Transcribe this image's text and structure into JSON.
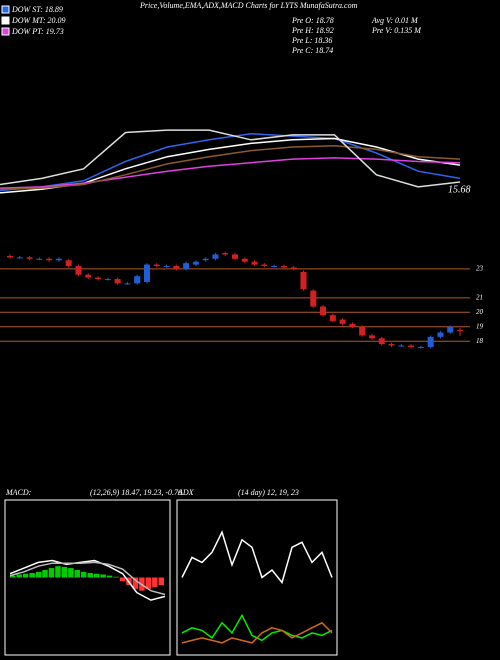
{
  "header": {
    "title": "Price,Volume,EMA,ADX,MACD Charts for LYTS MunafaSutra.com",
    "stats": [
      "Pre  O: 18.78",
      "Pre  H: 18.92",
      "Pre  L: 18.36",
      "Pre  C: 18.74",
      "Avg V: 0.01 M",
      "Pre  V: 0.135 M"
    ]
  },
  "chart_data": [
    {
      "type": "line",
      "annotation": "15.68",
      "ylim": [
        15,
        27
      ],
      "series": [
        {
          "name": "DOW ST: 18.89",
          "color": "#2a66ee",
          "values": [
            16.2,
            16.5,
            17.0,
            18.6,
            19.8,
            20.4,
            20.9,
            20.7,
            20.5,
            19.3,
            17.8,
            17.2
          ]
        },
        {
          "name": "DOW MT: 20.09",
          "color": "#ffffff",
          "values": [
            16.0,
            16.3,
            16.8,
            18.0,
            19.0,
            19.6,
            20.1,
            20.4,
            20.5,
            19.8,
            18.8,
            18.3
          ]
        },
        {
          "name": "DOW PT: 19.73",
          "color": "#e040e0",
          "values": [
            16.4,
            16.5,
            16.8,
            17.3,
            17.8,
            18.2,
            18.5,
            18.8,
            18.9,
            18.8,
            18.6,
            18.5
          ]
        },
        {
          "color": "#8b5a2b",
          "values": [
            16.3,
            16.4,
            16.7,
            17.5,
            18.4,
            19.0,
            19.5,
            19.8,
            19.9,
            19.6,
            19.0,
            18.8
          ]
        },
        {
          "color": "#dddddd",
          "values": [
            16.7,
            17.2,
            18.0,
            21.0,
            21.2,
            21.2,
            20.4,
            20.8,
            20.8,
            17.5,
            16.5,
            16.9
          ]
        }
      ]
    },
    {
      "type": "candlestick",
      "ylim": [
        16.7,
        25
      ],
      "yticks": [
        23,
        21,
        20,
        19,
        18
      ],
      "grid": true,
      "up_color": "#1f5fd6",
      "down_color": "#d42020",
      "open": [
        23.9,
        23.8,
        23.8,
        23.7,
        23.7,
        23.6,
        23.6,
        23.2,
        22.6,
        22.4,
        22.3,
        22.3,
        22.0,
        22.0,
        22.1,
        23.3,
        23.2,
        23.2,
        23.0,
        23.3,
        23.6,
        23.7,
        24.1,
        24.0,
        23.7,
        23.5,
        23.3,
        23.2,
        23.2,
        23.1,
        22.8,
        21.5,
        20.4,
        19.8,
        19.5,
        19.2,
        19.0,
        18.4,
        18.2,
        17.8,
        17.7,
        17.7,
        17.6,
        17.6,
        18.3,
        18.6,
        18.78
      ],
      "high": [
        24.0,
        23.9,
        23.9,
        23.8,
        23.8,
        23.8,
        23.7,
        23.3,
        22.7,
        22.5,
        22.4,
        22.4,
        22.1,
        22.6,
        23.4,
        23.4,
        23.3,
        23.3,
        23.5,
        23.6,
        23.8,
        24.1,
        24.2,
        24.1,
        23.8,
        23.6,
        23.4,
        23.3,
        23.3,
        23.2,
        22.9,
        21.6,
        20.5,
        19.9,
        19.6,
        19.3,
        19.1,
        18.5,
        18.3,
        17.9,
        17.8,
        17.8,
        17.7,
        18.4,
        18.7,
        19.1,
        18.92
      ],
      "low": [
        23.7,
        23.7,
        23.6,
        23.6,
        23.5,
        23.5,
        23.1,
        22.5,
        22.3,
        22.2,
        22.2,
        21.9,
        21.9,
        21.9,
        22.0,
        23.1,
        23.1,
        22.9,
        22.9,
        23.2,
        23.5,
        23.6,
        23.9,
        23.6,
        23.4,
        23.2,
        23.1,
        23.1,
        23.0,
        22.9,
        21.5,
        20.3,
        19.7,
        19.3,
        19.1,
        18.9,
        18.3,
        18.1,
        17.7,
        17.6,
        17.6,
        17.5,
        17.5,
        17.5,
        18.2,
        18.5,
        18.36
      ],
      "close": [
        23.8,
        23.8,
        23.7,
        23.7,
        23.6,
        23.7,
        23.2,
        22.6,
        22.4,
        22.3,
        22.3,
        22.0,
        22.0,
        22.5,
        23.3,
        23.2,
        23.2,
        23.0,
        23.4,
        23.5,
        23.7,
        24.0,
        24.0,
        23.7,
        23.5,
        23.3,
        23.2,
        23.2,
        23.1,
        23.0,
        21.6,
        20.4,
        19.8,
        19.4,
        19.2,
        19.0,
        18.4,
        18.2,
        17.8,
        17.7,
        17.7,
        17.6,
        17.6,
        18.3,
        18.6,
        19.0,
        18.74
      ]
    },
    {
      "type": "bar",
      "title": "MACD:",
      "subtitle": "(12,26,9) 18.47, 19.23, -0.76",
      "ylim": [
        -2,
        2
      ],
      "series": [
        {
          "type": "bar",
          "color": "#00cc00",
          "negative_color": "#ff3333",
          "values": [
            0.05,
            0.08,
            0.1,
            0.12,
            0.15,
            0.2,
            0.25,
            0.3,
            0.28,
            0.25,
            0.2,
            0.15,
            0.12,
            0.1,
            0.08,
            0.05,
            0.02,
            -0.1,
            -0.2,
            -0.3,
            -0.35,
            -0.3,
            -0.25,
            -0.2
          ]
        },
        {
          "type": "line",
          "color": "#ffffff",
          "values": [
            0.1,
            0.25,
            0.4,
            0.45,
            0.35,
            0.4,
            0.45,
            0.3,
            0.1,
            -0.4,
            -0.6,
            -0.5
          ]
        },
        {
          "type": "line",
          "color": "#bbbbbb",
          "values": [
            0.05,
            0.15,
            0.3,
            0.38,
            0.38,
            0.38,
            0.4,
            0.35,
            0.22,
            -0.1,
            -0.35,
            -0.45
          ]
        }
      ]
    },
    {
      "type": "line",
      "title": "ADX",
      "subtitle": "(14 day) 12, 19, 23",
      "ylim": [
        0,
        60
      ],
      "series": [
        {
          "color": "#ffffff",
          "values": [
            30,
            38,
            36,
            40,
            48,
            35,
            45,
            42,
            30,
            33,
            28,
            42,
            44,
            36,
            40,
            30
          ]
        },
        {
          "color": "#00ee00",
          "values": [
            8,
            10,
            9,
            6,
            12,
            8,
            15,
            7,
            5,
            8,
            9,
            7,
            6,
            8,
            7,
            9
          ]
        },
        {
          "color": "#d2691e",
          "values": [
            4,
            5,
            6,
            5,
            4,
            6,
            5,
            4,
            8,
            10,
            9,
            6,
            8,
            10,
            12,
            8
          ]
        }
      ]
    }
  ]
}
